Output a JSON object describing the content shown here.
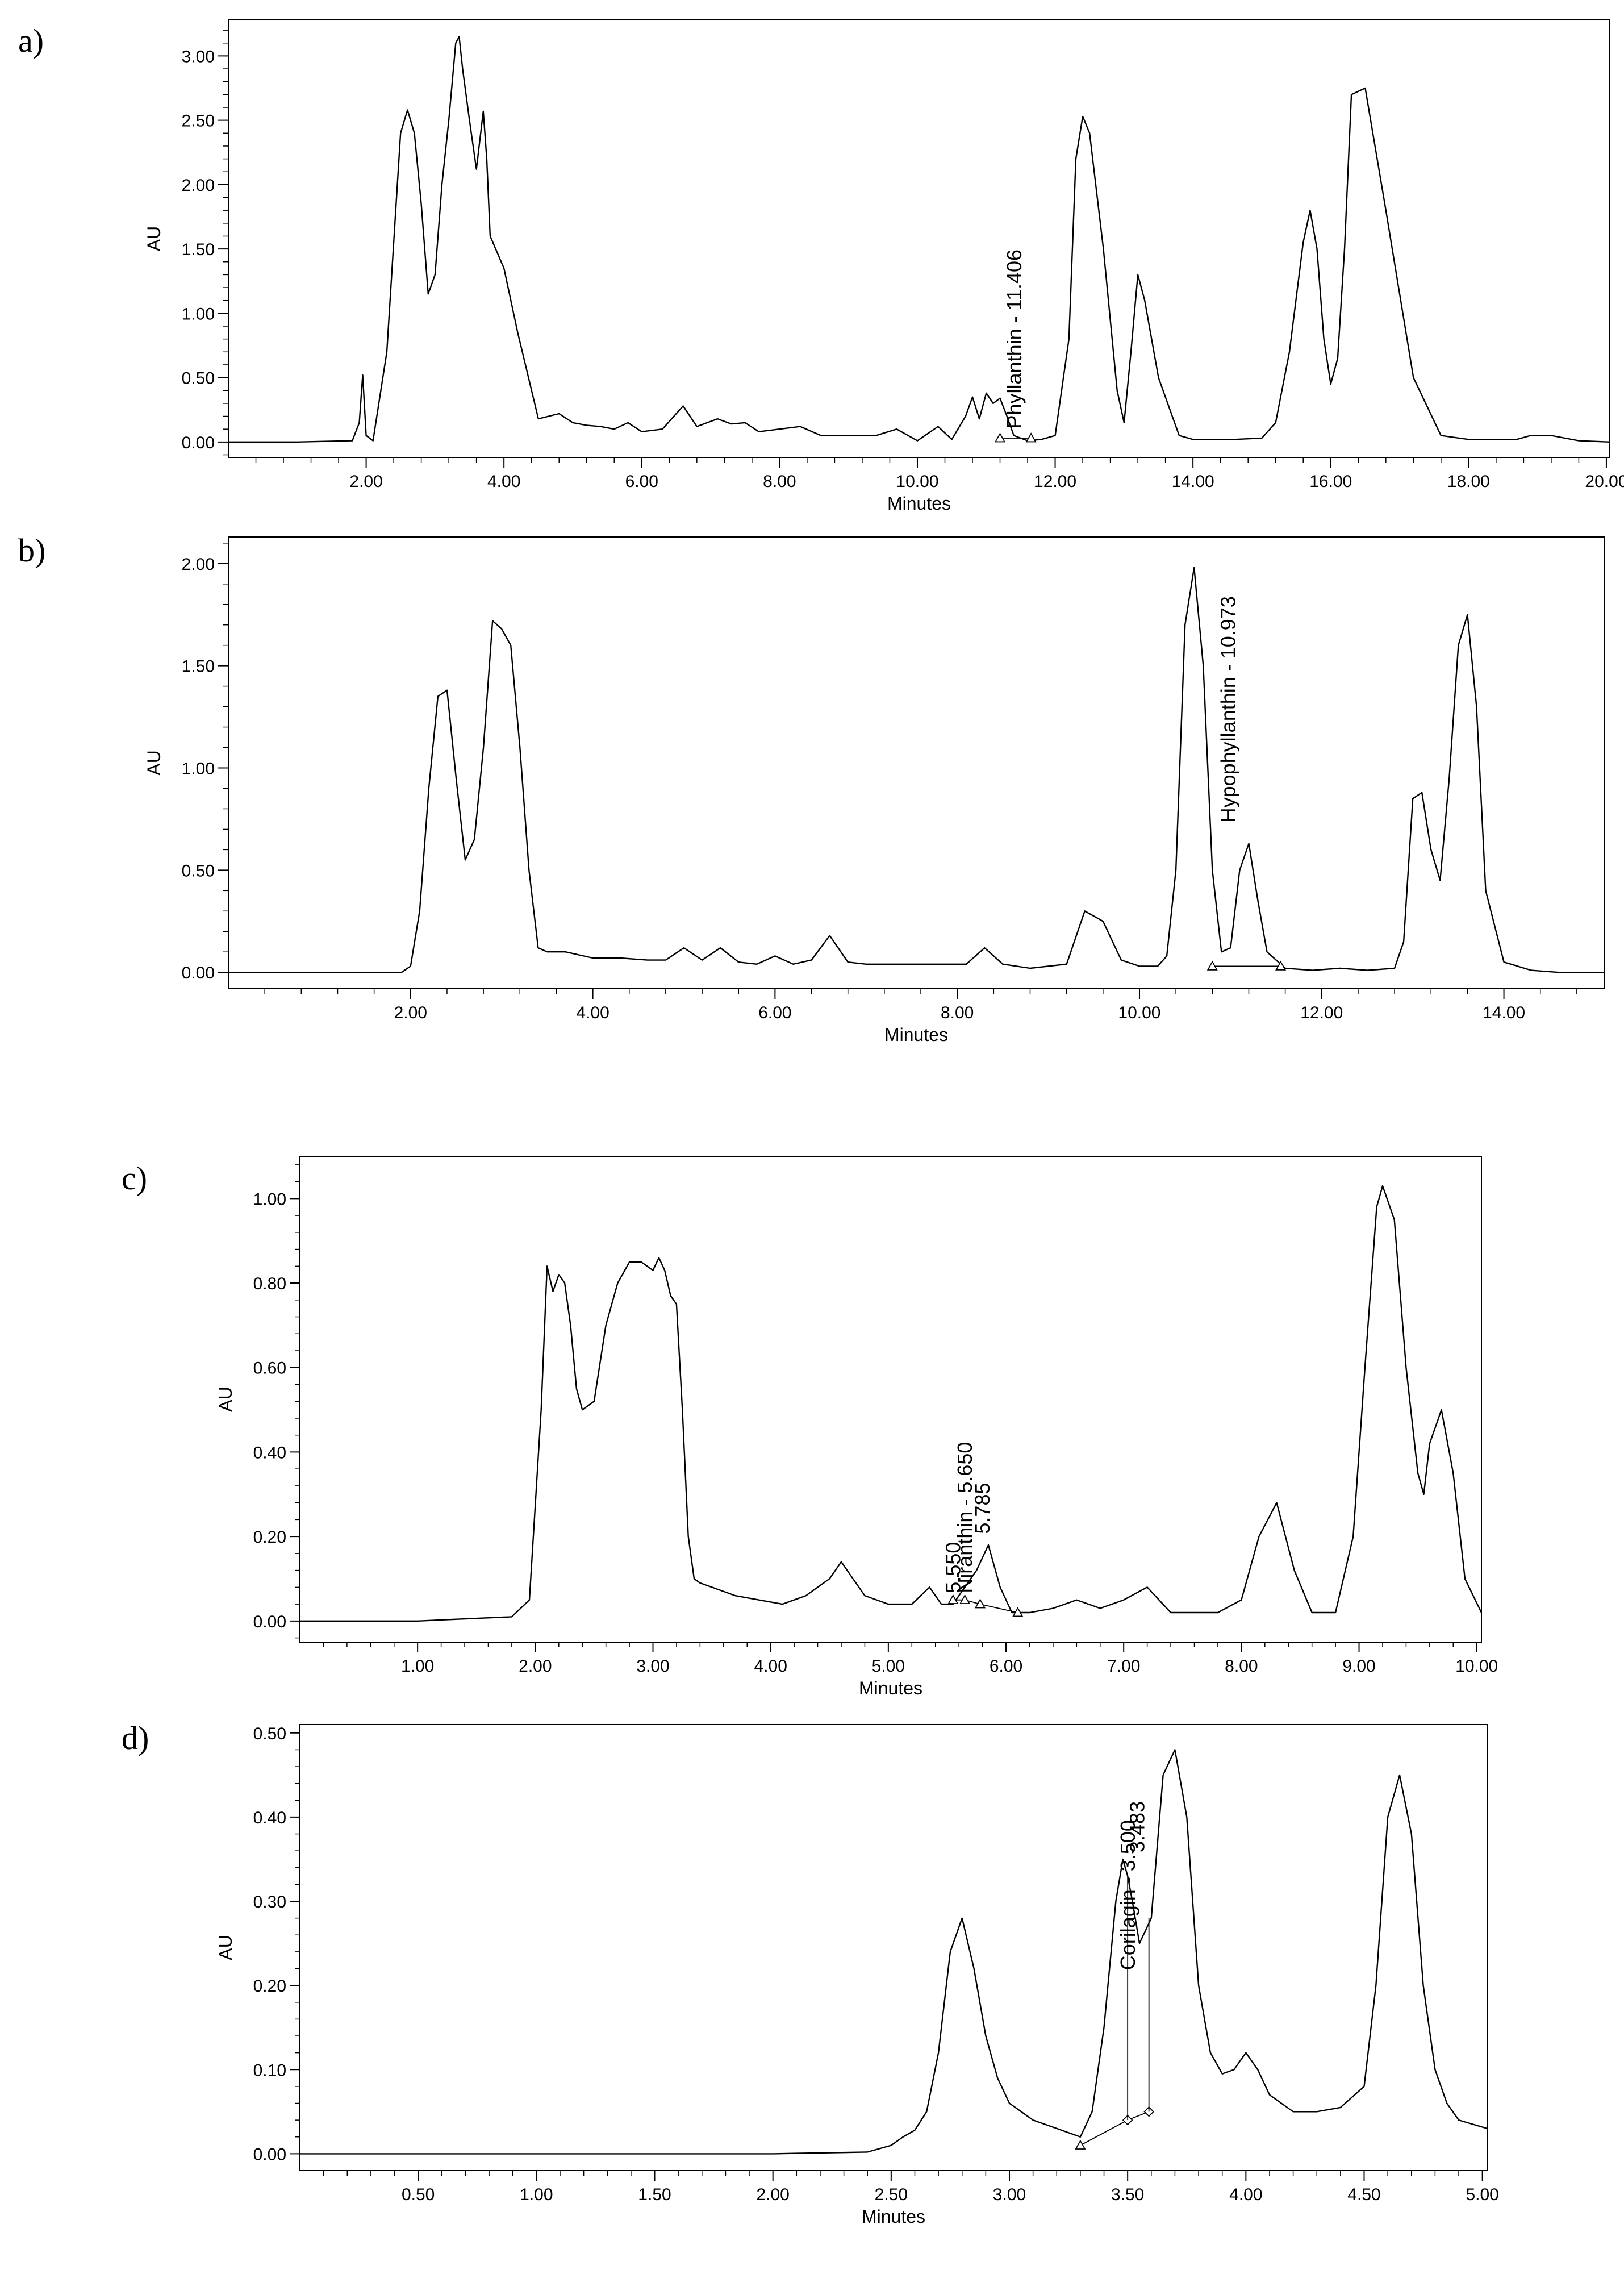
{
  "panels": [
    {
      "letter": "a)"
    },
    {
      "letter": "b)"
    },
    {
      "letter": "c)"
    },
    {
      "letter": "d)"
    }
  ],
  "chart_data": [
    {
      "type": "line",
      "panel": "a)",
      "xlabel": "Minutes",
      "ylabel": "AU",
      "xlim": [
        0,
        20.05
      ],
      "ylim": [
        -0.12,
        3.28
      ],
      "xticks": [
        2,
        4,
        6,
        8,
        10,
        12,
        14,
        16,
        18,
        20
      ],
      "xticklabels": [
        "2.00",
        "4.00",
        "6.00",
        "8.00",
        "10.00",
        "12.00",
        "14.00",
        "16.00",
        "18.00",
        "20.00"
      ],
      "yticks": [
        0,
        0.5,
        1,
        1.5,
        2,
        2.5,
        3
      ],
      "yticklabels": [
        "0.00",
        "0.50",
        "1.00",
        "1.50",
        "2.00",
        "2.50",
        "3.00"
      ],
      "series": [
        {
          "x": [
            0.0,
            1.0,
            1.8,
            1.9,
            1.95,
            2.0,
            2.1,
            2.3,
            2.5,
            2.6,
            2.7,
            2.8,
            2.9,
            3.0,
            3.1,
            3.2,
            3.3,
            3.35,
            3.4,
            3.5,
            3.6,
            3.7,
            3.75,
            3.8,
            4.0,
            4.2,
            4.5,
            4.8,
            5.0,
            5.2,
            5.4,
            5.6,
            5.8,
            6.0,
            6.3,
            6.6,
            6.8,
            7.1,
            7.3,
            7.5,
            7.7,
            8.0,
            8.3,
            8.6,
            9.0,
            9.4,
            9.7,
            10.0,
            10.3,
            10.5,
            10.7,
            10.8,
            10.9,
            11.0,
            11.1,
            11.2,
            11.3,
            11.4,
            11.6,
            11.8,
            12.0,
            12.2,
            12.3,
            12.4,
            12.5,
            12.7,
            12.9,
            13.0,
            13.1,
            13.2,
            13.3,
            13.5,
            13.8,
            14.0,
            14.2,
            14.6,
            15.0,
            15.2,
            15.4,
            15.6,
            15.7,
            15.8,
            15.9,
            16.0,
            16.1,
            16.2,
            16.3,
            16.5,
            16.8,
            17.2,
            17.6,
            18.0,
            18.4,
            18.7,
            18.9,
            19.2,
            19.6,
            20.05
          ],
          "y": [
            0.0,
            0.0,
            0.01,
            0.15,
            0.52,
            0.05,
            0.01,
            0.7,
            2.4,
            2.58,
            2.4,
            1.85,
            1.15,
            1.3,
            2.0,
            2.5,
            3.1,
            3.15,
            2.9,
            2.5,
            2.12,
            2.57,
            2.2,
            1.6,
            1.35,
            0.85,
            0.18,
            0.22,
            0.15,
            0.13,
            0.12,
            0.1,
            0.15,
            0.08,
            0.1,
            0.28,
            0.12,
            0.18,
            0.14,
            0.15,
            0.08,
            0.1,
            0.12,
            0.05,
            0.05,
            0.05,
            0.1,
            0.01,
            0.12,
            0.02,
            0.2,
            0.35,
            0.18,
            0.38,
            0.3,
            0.34,
            0.2,
            0.05,
            0.01,
            0.02,
            0.05,
            0.8,
            2.2,
            2.53,
            2.4,
            1.5,
            0.4,
            0.15,
            0.7,
            1.3,
            1.1,
            0.5,
            0.05,
            0.02,
            0.02,
            0.02,
            0.03,
            0.15,
            0.7,
            1.55,
            1.8,
            1.5,
            0.8,
            0.45,
            0.65,
            1.5,
            2.7,
            2.75,
            1.8,
            0.5,
            0.05,
            0.02,
            0.02,
            0.02,
            0.05,
            0.05,
            0.01,
            0.0
          ]
        }
      ],
      "annotations": [
        {
          "text": "Phyllanthin - 11.406",
          "x": 11.406,
          "y": 0.05,
          "markers": [
            11.2,
            11.65
          ]
        }
      ]
    },
    {
      "type": "line",
      "panel": "b)",
      "xlabel": "Minutes",
      "ylabel": "AU",
      "xlim": [
        0,
        15.1
      ],
      "ylim": [
        -0.08,
        2.13
      ],
      "xticks": [
        2,
        4,
        6,
        8,
        10,
        12,
        14
      ],
      "xticklabels": [
        "2.00",
        "4.00",
        "6.00",
        "8.00",
        "10.00",
        "12.00",
        "14.00"
      ],
      "yticks": [
        0,
        0.5,
        1,
        1.5,
        2
      ],
      "yticklabels": [
        "0.00",
        "0.50",
        "1.00",
        "1.50",
        "2.00"
      ],
      "series": [
        {
          "x": [
            0.0,
            1.5,
            1.9,
            2.0,
            2.1,
            2.2,
            2.3,
            2.4,
            2.5,
            2.6,
            2.7,
            2.8,
            2.9,
            3.0,
            3.1,
            3.2,
            3.3,
            3.4,
            3.5,
            3.7,
            4.0,
            4.3,
            4.6,
            4.8,
            5.0,
            5.2,
            5.4,
            5.6,
            5.8,
            6.0,
            6.2,
            6.4,
            6.6,
            6.8,
            7.0,
            7.4,
            7.8,
            8.1,
            8.3,
            8.5,
            8.8,
            9.2,
            9.4,
            9.6,
            9.8,
            10.0,
            10.2,
            10.3,
            10.4,
            10.5,
            10.6,
            10.7,
            10.8,
            10.9,
            11.0,
            11.1,
            11.2,
            11.3,
            11.4,
            11.6,
            11.9,
            12.2,
            12.5,
            12.8,
            12.9,
            13.0,
            13.1,
            13.2,
            13.3,
            13.4,
            13.5,
            13.6,
            13.7,
            13.8,
            14.0,
            14.3,
            14.6,
            15.1
          ],
          "y": [
            0.0,
            0.0,
            0.0,
            0.03,
            0.3,
            0.9,
            1.35,
            1.38,
            0.95,
            0.55,
            0.65,
            1.1,
            1.72,
            1.68,
            1.6,
            1.1,
            0.5,
            0.12,
            0.1,
            0.1,
            0.07,
            0.07,
            0.06,
            0.06,
            0.12,
            0.06,
            0.12,
            0.05,
            0.04,
            0.08,
            0.04,
            0.06,
            0.18,
            0.05,
            0.04,
            0.04,
            0.04,
            0.04,
            0.12,
            0.04,
            0.02,
            0.04,
            0.3,
            0.25,
            0.06,
            0.03,
            0.03,
            0.08,
            0.5,
            1.7,
            1.98,
            1.5,
            0.5,
            0.1,
            0.12,
            0.5,
            0.63,
            0.35,
            0.1,
            0.02,
            0.01,
            0.02,
            0.01,
            0.02,
            0.15,
            0.85,
            0.88,
            0.6,
            0.45,
            0.95,
            1.6,
            1.75,
            1.3,
            0.4,
            0.05,
            0.01,
            0.0,
            0.0
          ]
        }
      ],
      "annotations": [
        {
          "text": "Hypophyllanthin - 10.973",
          "x": 10.973,
          "y": 0.7,
          "markers": [
            10.8,
            11.55
          ]
        }
      ]
    },
    {
      "type": "line",
      "panel": "c)",
      "xlabel": "Minutes",
      "ylabel": "AU",
      "xlim": [
        0,
        10.04
      ],
      "ylim": [
        -0.05,
        1.1
      ],
      "xticks": [
        1,
        2,
        3,
        4,
        5,
        6,
        7,
        8,
        9,
        10
      ],
      "xticklabels": [
        "1.00",
        "2.00",
        "3.00",
        "4.00",
        "5.00",
        "6.00",
        "7.00",
        "8.00",
        "9.00",
        "10.00"
      ],
      "yticks": [
        0,
        0.2,
        0.4,
        0.6,
        0.8,
        1
      ],
      "yticklabels": [
        "0.00",
        "0.20",
        "0.40",
        "0.60",
        "0.80",
        "1.00"
      ],
      "series": [
        {
          "x": [
            0.0,
            1.0,
            1.8,
            1.95,
            2.05,
            2.1,
            2.15,
            2.2,
            2.25,
            2.3,
            2.35,
            2.4,
            2.5,
            2.6,
            2.7,
            2.8,
            2.9,
            3.0,
            3.05,
            3.1,
            3.15,
            3.2,
            3.25,
            3.3,
            3.35,
            3.4,
            3.5,
            3.7,
            3.9,
            4.1,
            4.3,
            4.5,
            4.6,
            4.7,
            4.8,
            5.0,
            5.2,
            5.35,
            5.45,
            5.55,
            5.65,
            5.75,
            5.85,
            5.95,
            6.05,
            6.2,
            6.4,
            6.6,
            6.8,
            7.0,
            7.2,
            7.4,
            7.6,
            7.8,
            8.0,
            8.15,
            8.3,
            8.45,
            8.6,
            8.8,
            8.95,
            9.05,
            9.15,
            9.2,
            9.3,
            9.4,
            9.5,
            9.55,
            9.6,
            9.7,
            9.8,
            9.9,
            10.04
          ],
          "y": [
            0.0,
            0.0,
            0.01,
            0.05,
            0.5,
            0.84,
            0.78,
            0.82,
            0.8,
            0.7,
            0.55,
            0.5,
            0.52,
            0.7,
            0.8,
            0.85,
            0.85,
            0.83,
            0.86,
            0.83,
            0.77,
            0.75,
            0.5,
            0.2,
            0.1,
            0.09,
            0.08,
            0.06,
            0.05,
            0.04,
            0.06,
            0.1,
            0.14,
            0.1,
            0.06,
            0.04,
            0.04,
            0.08,
            0.04,
            0.04,
            0.08,
            0.12,
            0.18,
            0.08,
            0.02,
            0.02,
            0.03,
            0.05,
            0.03,
            0.05,
            0.08,
            0.02,
            0.02,
            0.02,
            0.05,
            0.2,
            0.28,
            0.12,
            0.02,
            0.02,
            0.2,
            0.6,
            0.98,
            1.03,
            0.95,
            0.6,
            0.35,
            0.3,
            0.42,
            0.5,
            0.35,
            0.1,
            0.02
          ]
        }
      ],
      "annotations": [
        {
          "text": "Niranthin - 5.650",
          "x": 5.65,
          "y": 0.05
        },
        {
          "text": "5.785",
          "x": 5.8,
          "y": 0.19
        },
        {
          "text": "5.550",
          "x": 5.55,
          "y": 0.05
        }
      ],
      "baseline_markers": [
        5.55,
        5.65,
        5.78,
        6.1
      ]
    },
    {
      "type": "line",
      "panel": "d)",
      "xlabel": "Minutes",
      "ylabel": "AU",
      "xlim": [
        0,
        5.02
      ],
      "ylim": [
        -0.02,
        0.51
      ],
      "xticks": [
        0.5,
        1.0,
        1.5,
        2.0,
        2.5,
        3.0,
        3.5,
        4.0,
        4.5,
        5.0
      ],
      "xticklabels": [
        "0.50",
        "1.00",
        "1.50",
        "2.00",
        "2.50",
        "3.00",
        "3.50",
        "4.00",
        "4.50",
        "5.00"
      ],
      "yticks": [
        0,
        0.1,
        0.2,
        0.3,
        0.4,
        0.5
      ],
      "yticklabels": [
        "0.00",
        "0.10",
        "0.20",
        "0.30",
        "0.40",
        "0.50"
      ],
      "series": [
        {
          "x": [
            0.0,
            1.0,
            2.0,
            2.4,
            2.5,
            2.55,
            2.6,
            2.65,
            2.7,
            2.75,
            2.8,
            2.85,
            2.9,
            2.95,
            3.0,
            3.1,
            3.2,
            3.3,
            3.35,
            3.4,
            3.45,
            3.48,
            3.5,
            3.52,
            3.55,
            3.6,
            3.65,
            3.7,
            3.75,
            3.8,
            3.85,
            3.9,
            3.95,
            4.0,
            4.05,
            4.1,
            4.2,
            4.3,
            4.4,
            4.5,
            4.55,
            4.6,
            4.65,
            4.7,
            4.75,
            4.8,
            4.85,
            4.9,
            5.02
          ],
          "y": [
            0.0,
            0.0,
            0.0,
            0.002,
            0.01,
            0.02,
            0.028,
            0.05,
            0.12,
            0.24,
            0.28,
            0.22,
            0.14,
            0.09,
            0.06,
            0.04,
            0.03,
            0.02,
            0.05,
            0.15,
            0.3,
            0.35,
            0.33,
            0.3,
            0.25,
            0.28,
            0.45,
            0.48,
            0.4,
            0.2,
            0.12,
            0.095,
            0.1,
            0.12,
            0.1,
            0.07,
            0.05,
            0.05,
            0.055,
            0.08,
            0.2,
            0.4,
            0.45,
            0.38,
            0.2,
            0.1,
            0.06,
            0.04,
            0.03
          ]
        }
      ],
      "annotations": [
        {
          "text": "Corilagin - 3.500",
          "x": 3.5,
          "y": 0.21
        },
        {
          "text": "3.483",
          "x": 3.54,
          "y": 0.35
        }
      ],
      "baseline_markers": [
        3.3,
        3.5,
        3.59
      ]
    }
  ]
}
